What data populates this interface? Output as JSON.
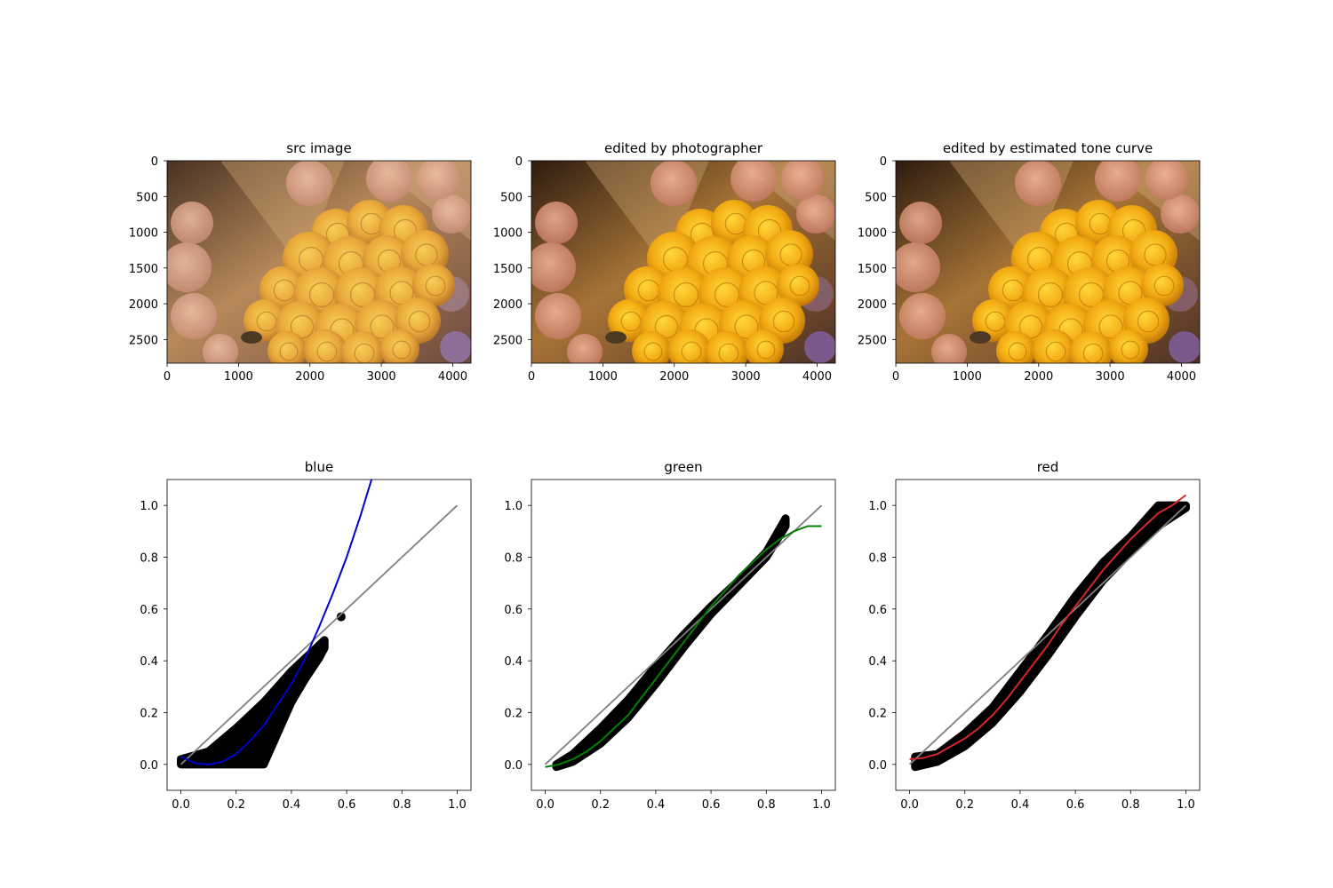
{
  "images": {
    "panels": [
      {
        "title": "src image",
        "variant": "src"
      },
      {
        "title": "edited by photographer",
        "variant": "edited"
      },
      {
        "title": "edited by estimated tone curve",
        "variant": "estimated"
      }
    ],
    "x_ticks": [
      "0",
      "1000",
      "2000",
      "3000",
      "4000"
    ],
    "y_ticks": [
      "0",
      "500",
      "1000",
      "1500",
      "2000",
      "2500"
    ],
    "extent": {
      "width": 4256,
      "height": 2832
    }
  },
  "chart_data": [
    {
      "type": "scatter",
      "title": "blue",
      "xlabel": "",
      "ylabel": "",
      "xlim": [
        -0.05,
        1.05
      ],
      "ylim": [
        -0.1,
        1.1
      ],
      "x_ticks": [
        "0.0",
        "0.2",
        "0.4",
        "0.6",
        "0.8",
        "1.0"
      ],
      "y_ticks": [
        "0.0",
        "0.2",
        "0.4",
        "0.6",
        "0.8",
        "1.0"
      ],
      "identity_line": {
        "x": [
          0,
          1
        ],
        "y": [
          0,
          1
        ],
        "color": "#808080"
      },
      "scatter_band": {
        "upper": [
          [
            0,
            0.02
          ],
          [
            0.1,
            0.05
          ],
          [
            0.2,
            0.14
          ],
          [
            0.3,
            0.24
          ],
          [
            0.4,
            0.36
          ],
          [
            0.45,
            0.41
          ],
          [
            0.5,
            0.46
          ],
          [
            0.52,
            0.48
          ]
        ],
        "lower": [
          [
            0,
            0
          ],
          [
            0.3,
            0
          ],
          [
            0.35,
            0.12
          ],
          [
            0.4,
            0.24
          ],
          [
            0.45,
            0.33
          ],
          [
            0.5,
            0.41
          ],
          [
            0.52,
            0.45
          ]
        ],
        "outliers": [
          [
            0.58,
            0.57
          ]
        ],
        "color": "#000000"
      },
      "fit_curve": {
        "color": "#0000cc",
        "points": [
          [
            0,
            0.03
          ],
          [
            0.05,
            0.005
          ],
          [
            0.1,
            0
          ],
          [
            0.15,
            0.01
          ],
          [
            0.2,
            0.04
          ],
          [
            0.25,
            0.09
          ],
          [
            0.3,
            0.15
          ],
          [
            0.35,
            0.23
          ],
          [
            0.4,
            0.31
          ],
          [
            0.45,
            0.41
          ],
          [
            0.5,
            0.53
          ],
          [
            0.55,
            0.66
          ],
          [
            0.6,
            0.8
          ],
          [
            0.65,
            0.96
          ],
          [
            0.69,
            1.1
          ]
        ]
      }
    },
    {
      "type": "scatter",
      "title": "green",
      "xlabel": "",
      "ylabel": "",
      "xlim": [
        -0.05,
        1.05
      ],
      "ylim": [
        -0.1,
        1.1
      ],
      "x_ticks": [
        "0.0",
        "0.2",
        "0.4",
        "0.6",
        "0.8",
        "1.0"
      ],
      "y_ticks": [
        "0.0",
        "0.2",
        "0.4",
        "0.6",
        "0.8",
        "1.0"
      ],
      "identity_line": {
        "x": [
          0,
          1
        ],
        "y": [
          0,
          1
        ],
        "color": "#808080"
      },
      "scatter_band": {
        "upper": [
          [
            0.04,
            0
          ],
          [
            0.1,
            0.04
          ],
          [
            0.2,
            0.14
          ],
          [
            0.3,
            0.25
          ],
          [
            0.4,
            0.38
          ],
          [
            0.5,
            0.5
          ],
          [
            0.6,
            0.61
          ],
          [
            0.7,
            0.71
          ],
          [
            0.8,
            0.82
          ],
          [
            0.87,
            0.95
          ]
        ],
        "lower": [
          [
            0.04,
            -0.01
          ],
          [
            0.1,
            0.01
          ],
          [
            0.2,
            0.08
          ],
          [
            0.3,
            0.18
          ],
          [
            0.4,
            0.31
          ],
          [
            0.5,
            0.45
          ],
          [
            0.6,
            0.58
          ],
          [
            0.7,
            0.69
          ],
          [
            0.8,
            0.8
          ],
          [
            0.87,
            0.92
          ]
        ],
        "outliers": [],
        "color": "#000000"
      },
      "fit_curve": {
        "color": "#008000",
        "points": [
          [
            0,
            -0.01
          ],
          [
            0.05,
            0
          ],
          [
            0.1,
            0.02
          ],
          [
            0.15,
            0.05
          ],
          [
            0.2,
            0.09
          ],
          [
            0.25,
            0.14
          ],
          [
            0.3,
            0.19
          ],
          [
            0.35,
            0.26
          ],
          [
            0.4,
            0.33
          ],
          [
            0.45,
            0.4
          ],
          [
            0.5,
            0.47
          ],
          [
            0.55,
            0.54
          ],
          [
            0.6,
            0.61
          ],
          [
            0.65,
            0.67
          ],
          [
            0.7,
            0.73
          ],
          [
            0.75,
            0.78
          ],
          [
            0.8,
            0.83
          ],
          [
            0.85,
            0.87
          ],
          [
            0.9,
            0.9
          ],
          [
            0.95,
            0.92
          ],
          [
            1.0,
            0.92
          ]
        ]
      }
    },
    {
      "type": "scatter",
      "title": "red",
      "xlabel": "",
      "ylabel": "",
      "xlim": [
        -0.05,
        1.05
      ],
      "ylim": [
        -0.1,
        1.1
      ],
      "x_ticks": [
        "0.0",
        "0.2",
        "0.4",
        "0.6",
        "0.8",
        "1.0"
      ],
      "y_ticks": [
        "0.0",
        "0.2",
        "0.4",
        "0.6",
        "0.8",
        "1.0"
      ],
      "identity_line": {
        "x": [
          0,
          1
        ],
        "y": [
          0,
          1
        ],
        "color": "#808080"
      },
      "scatter_band": {
        "upper": [
          [
            0.02,
            0.03
          ],
          [
            0.1,
            0.04
          ],
          [
            0.2,
            0.12
          ],
          [
            0.3,
            0.22
          ],
          [
            0.4,
            0.36
          ],
          [
            0.5,
            0.5
          ],
          [
            0.6,
            0.65
          ],
          [
            0.7,
            0.78
          ],
          [
            0.8,
            0.88
          ],
          [
            0.9,
            1.0
          ],
          [
            1.0,
            1.0
          ]
        ],
        "lower": [
          [
            0.02,
            -0.01
          ],
          [
            0.1,
            0.01
          ],
          [
            0.2,
            0.07
          ],
          [
            0.3,
            0.16
          ],
          [
            0.4,
            0.28
          ],
          [
            0.5,
            0.42
          ],
          [
            0.6,
            0.57
          ],
          [
            0.7,
            0.71
          ],
          [
            0.8,
            0.82
          ],
          [
            0.9,
            0.92
          ],
          [
            1.0,
            0.99
          ]
        ],
        "outliers": [],
        "color": "#000000"
      },
      "fit_curve": {
        "color": "#d62728",
        "points": [
          [
            0,
            0.02
          ],
          [
            0.05,
            0.025
          ],
          [
            0.1,
            0.04
          ],
          [
            0.15,
            0.07
          ],
          [
            0.2,
            0.1
          ],
          [
            0.25,
            0.14
          ],
          [
            0.3,
            0.19
          ],
          [
            0.35,
            0.25
          ],
          [
            0.4,
            0.32
          ],
          [
            0.45,
            0.39
          ],
          [
            0.5,
            0.46
          ],
          [
            0.55,
            0.54
          ],
          [
            0.6,
            0.61
          ],
          [
            0.65,
            0.68
          ],
          [
            0.7,
            0.75
          ],
          [
            0.75,
            0.81
          ],
          [
            0.8,
            0.87
          ],
          [
            0.85,
            0.92
          ],
          [
            0.9,
            0.97
          ],
          [
            0.95,
            1.0
          ],
          [
            1.0,
            1.04
          ]
        ]
      }
    }
  ]
}
